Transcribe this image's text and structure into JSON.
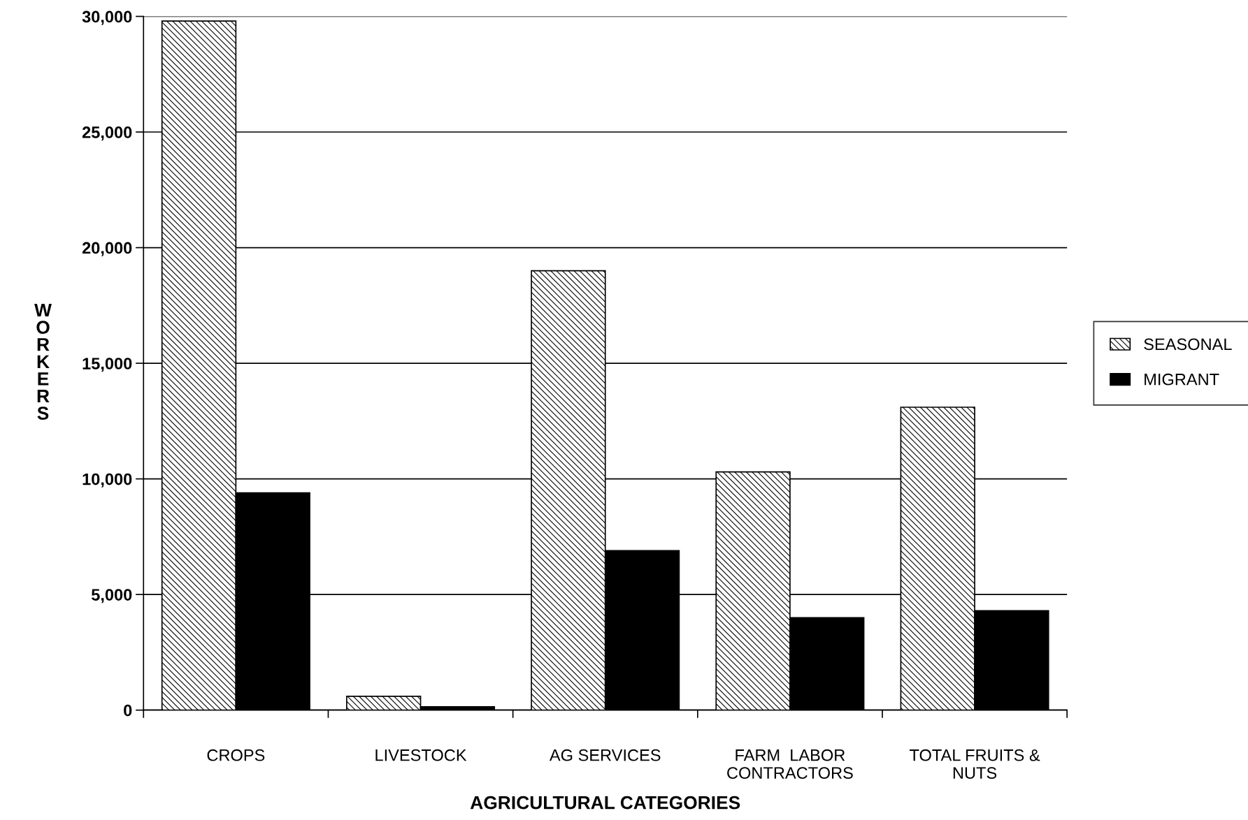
{
  "chart_data": {
    "type": "bar",
    "categories": [
      "CROPS",
      "LIVESTOCK",
      "AG SERVICES",
      "FARM  LABOR\nCONTRACTORS",
      "TOTAL FRUITS &\nNUTS"
    ],
    "series": [
      {
        "name": "SEASONAL",
        "color": "#000000",
        "values": [
          29800,
          600,
          19000,
          10300,
          13100
        ]
      },
      {
        "name": "MIGRANT",
        "color": "#000000",
        "values": [
          9400,
          150,
          6900,
          4000,
          4300
        ]
      }
    ],
    "xlabel": "AGRICULTURAL CATEGORIES",
    "ylabel": "WORKERS",
    "ylim": [
      0,
      30000
    ],
    "yticks": [
      {
        "value": 0,
        "label": "0"
      },
      {
        "value": 5000,
        "label": "5,000"
      },
      {
        "value": 10000,
        "label": "10,000"
      },
      {
        "value": 15000,
        "label": "15,000"
      },
      {
        "value": 20000,
        "label": "20,000"
      },
      {
        "value": 25000,
        "label": "25,000"
      },
      {
        "value": 30000,
        "label": "30,000"
      }
    ],
    "grid": "y",
    "legend": "right"
  }
}
